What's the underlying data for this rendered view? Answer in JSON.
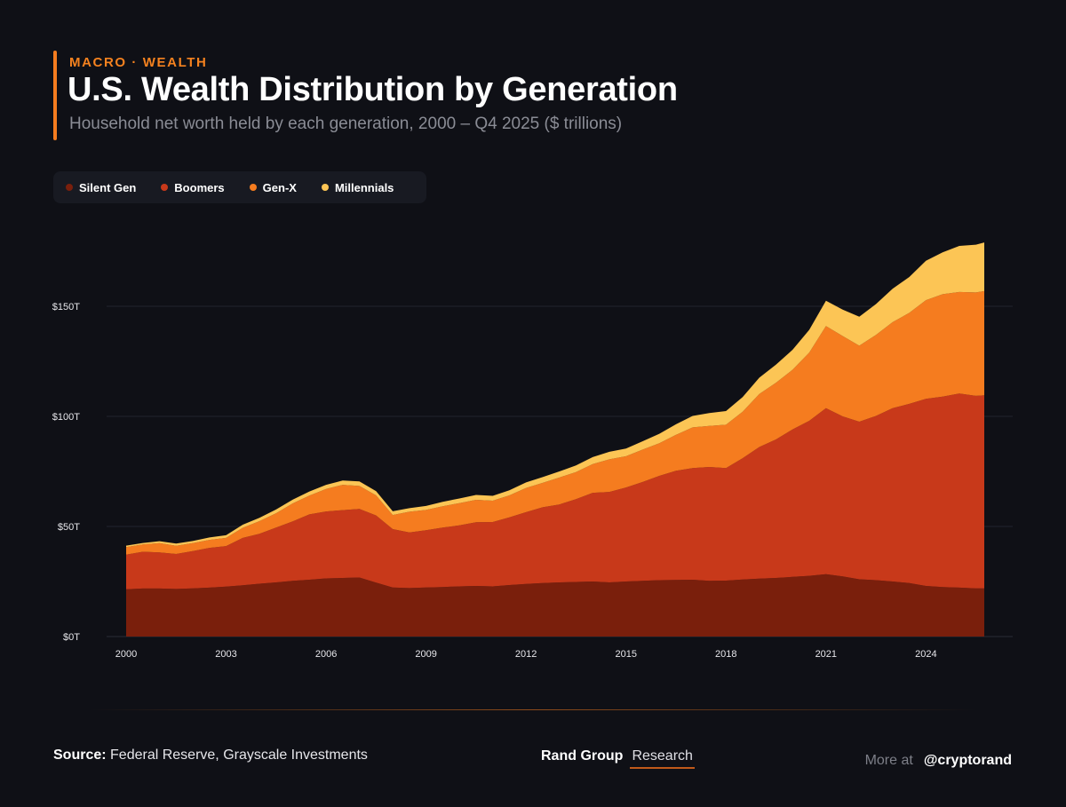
{
  "header": {
    "eyebrow": "MACRO · WEALTH",
    "title": "U.S. Wealth Distribution by Generation",
    "subtitle": "Household net worth held by each generation, 2000 – Q4 2025 ($ trillions)"
  },
  "legend": [
    {
      "label": "Silent Gen",
      "color": "#7a1f0c"
    },
    {
      "label": "Boomers",
      "color": "#c8391a"
    },
    {
      "label": "Gen-X",
      "color": "#f57c1f"
    },
    {
      "label": "Millennials",
      "color": "#fcc555"
    }
  ],
  "chart_data": {
    "type": "area",
    "stacked": true,
    "x": [
      2000,
      2000.5,
      2001,
      2001.5,
      2002,
      2002.5,
      2003,
      2003.5,
      2004,
      2004.5,
      2005,
      2005.5,
      2006,
      2006.5,
      2007,
      2007.5,
      2008,
      2008.5,
      2009,
      2009.5,
      2010,
      2010.5,
      2011,
      2011.5,
      2012,
      2012.5,
      2013,
      2013.5,
      2014,
      2014.5,
      2015,
      2015.5,
      2016,
      2016.5,
      2017,
      2017.5,
      2018,
      2018.5,
      2019,
      2019.5,
      2020,
      2020.5,
      2021,
      2021.5,
      2022,
      2022.5,
      2023,
      2023.5,
      2024,
      2024.5,
      2025,
      2025.5,
      2025.75
    ],
    "series": [
      {
        "name": "Silent Gen",
        "values": [
          21.5,
          21.8,
          21.8,
          21.6,
          21.9,
          22.2,
          22.7,
          23.3,
          24.0,
          24.6,
          25.3,
          25.8,
          26.4,
          26.6,
          26.8,
          24.5,
          22.3,
          22.0,
          22.3,
          22.5,
          22.8,
          23.0,
          22.8,
          23.4,
          23.9,
          24.3,
          24.6,
          24.8,
          25.0,
          24.6,
          25.0,
          25.3,
          25.6,
          25.7,
          25.8,
          25.3,
          25.4,
          25.9,
          26.3,
          26.6,
          27.1,
          27.6,
          28.3,
          27.3,
          26.0,
          25.6,
          25.0,
          24.3,
          23.0,
          22.5,
          22.2,
          21.9,
          21.9
        ]
      },
      {
        "name": "Boomers",
        "values": [
          15.7,
          16.7,
          16.4,
          15.9,
          16.9,
          18.1,
          18.4,
          21.5,
          22.7,
          24.9,
          27.0,
          29.7,
          30.4,
          30.8,
          31.2,
          30.5,
          26.5,
          25.3,
          26.0,
          27.0,
          27.7,
          28.9,
          29.2,
          30.7,
          32.6,
          34.4,
          35.4,
          37.6,
          40.3,
          41.1,
          42.7,
          44.9,
          47.4,
          49.6,
          50.7,
          51.7,
          51.1,
          55.1,
          59.8,
          62.9,
          67.0,
          70.4,
          75.4,
          72.7,
          71.6,
          74.6,
          78.7,
          81.4,
          85.0,
          86.5,
          88.2,
          87.4,
          87.7
        ]
      },
      {
        "name": "Gen-X",
        "values": [
          3.4,
          3.3,
          4.2,
          3.7,
          3.6,
          3.6,
          3.7,
          4.6,
          5.7,
          6.5,
          8.2,
          8.5,
          10.2,
          11.5,
          10.4,
          9.1,
          6.4,
          9.4,
          9.2,
          9.7,
          10.1,
          10.2,
          9.7,
          10.0,
          11.0,
          11.1,
          12.2,
          12.3,
          13.0,
          14.8,
          14.2,
          14.7,
          14.8,
          16.3,
          18.5,
          18.7,
          19.7,
          21.1,
          24.1,
          25.8,
          27.1,
          31.0,
          37.3,
          36.5,
          34.5,
          36.8,
          39.1,
          41.3,
          44.8,
          46.5,
          46.1,
          47.0,
          47.3
        ]
      },
      {
        "name": "Millennials",
        "values": [
          0.7,
          0.7,
          0.9,
          1.0,
          1.0,
          1.1,
          1.2,
          1.4,
          1.5,
          1.7,
          1.7,
          1.9,
          1.9,
          2.0,
          2.1,
          1.9,
          1.7,
          1.6,
          1.8,
          2.0,
          2.1,
          2.2,
          2.2,
          2.3,
          2.5,
          2.6,
          2.8,
          3.0,
          3.2,
          3.4,
          3.5,
          3.8,
          4.3,
          4.8,
          5.2,
          5.8,
          6.2,
          6.7,
          7.4,
          8.2,
          9.1,
          10.3,
          11.5,
          12.0,
          13.2,
          14.0,
          15.2,
          16.3,
          17.9,
          19.0,
          20.9,
          21.7,
          22.1
        ]
      }
    ],
    "y_ticks": [
      "$0T",
      "$50T",
      "$100T",
      "$150T"
    ],
    "y_tick_values": [
      0,
      50,
      100,
      150
    ],
    "x_ticks": [
      "2000",
      "2003",
      "2006",
      "2009",
      "2012",
      "2015",
      "2018",
      "2021",
      "2024"
    ],
    "x_tick_values": [
      2000,
      2003,
      2006,
      2009,
      2012,
      2015,
      2018,
      2021,
      2024
    ],
    "ylim": [
      0,
      185
    ],
    "xlim": [
      2000,
      2025.75
    ],
    "grid": "horizontal",
    "legend_position": "top-left"
  },
  "footer": {
    "source_label": "Source:",
    "source_text": "Federal Reserve, Grayscale Investments",
    "brand_name": "Rand Group",
    "brand_sub": "Research",
    "more_label": "More at",
    "handle": "@cryptorand"
  }
}
